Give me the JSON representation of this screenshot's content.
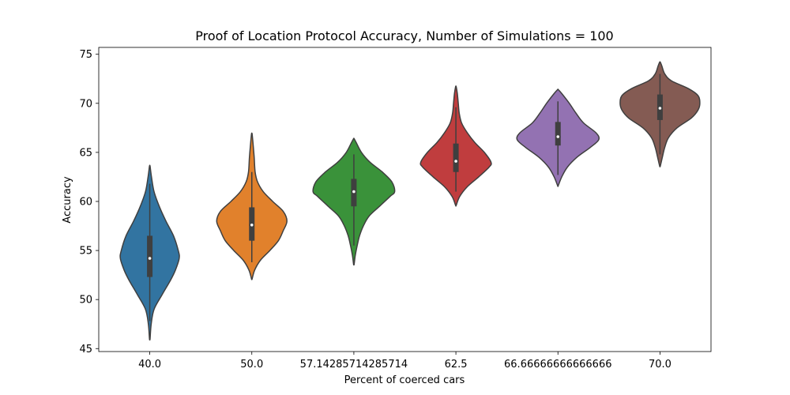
{
  "chart_data": {
    "type": "violin",
    "title": "Proof of Location Protocol Accuracy, Number of Simulations = 100",
    "xlabel": "Percent of coerced cars",
    "ylabel": "Accuracy",
    "ylim": [
      44.7,
      75.7
    ],
    "yticks": [
      45,
      50,
      55,
      60,
      65,
      70,
      75
    ],
    "ytick_labels": [
      "45",
      "50",
      "55",
      "60",
      "65",
      "70",
      "75"
    ],
    "grid": false,
    "categories": [
      "40.0",
      "50.0",
      "57.142857142857140",
      "62.5",
      "66.66666666666666",
      "70.0"
    ],
    "category_labels": [
      "40.0",
      "50.0",
      "57.14285714285714",
      "62.5",
      "66.66666666666666",
      "70.0"
    ],
    "series": [
      {
        "category": "40.0",
        "color": "#3274a1",
        "min": 46.0,
        "max": 63.6,
        "q1": 52.3,
        "median": 54.2,
        "q3": 56.5,
        "whisker_low": 47.8,
        "whisker_high": 61.8,
        "density": [
          [
            46.0,
            0.3
          ],
          [
            47.5,
            1.5
          ],
          [
            49.0,
            4.5
          ],
          [
            50.5,
            13
          ],
          [
            52.0,
            22
          ],
          [
            53.0,
            27
          ],
          [
            54.2,
            31
          ],
          [
            55.0,
            30
          ],
          [
            56.5,
            25
          ],
          [
            58.0,
            17
          ],
          [
            59.5,
            10
          ],
          [
            61.0,
            4.5
          ],
          [
            62.5,
            1.8
          ],
          [
            63.6,
            0.3
          ]
        ]
      },
      {
        "category": "50.0",
        "color": "#e1812c",
        "min": 52.1,
        "max": 66.9,
        "q1": 56.0,
        "median": 57.6,
        "q3": 59.4,
        "whisker_low": 53.8,
        "whisker_high": 63.0,
        "density": [
          [
            52.1,
            0.3
          ],
          [
            53.0,
            3
          ],
          [
            54.0,
            9
          ],
          [
            55.0,
            19
          ],
          [
            56.0,
            28
          ],
          [
            57.0,
            33
          ],
          [
            58.0,
            37
          ],
          [
            59.0,
            33
          ],
          [
            60.0,
            22
          ],
          [
            61.0,
            12
          ],
          [
            62.0,
            6
          ],
          [
            63.0,
            3.5
          ],
          [
            64.5,
            2.5
          ],
          [
            66.0,
            1.2
          ],
          [
            66.9,
            0.3
          ]
        ]
      },
      {
        "category": "57.142857142857140",
        "color": "#3a923a",
        "min": 53.6,
        "max": 66.4,
        "q1": 59.5,
        "median": 61.0,
        "q3": 62.3,
        "whisker_low": 55.5,
        "whisker_high": 64.8,
        "density": [
          [
            53.6,
            0.3
          ],
          [
            54.5,
            1.5
          ],
          [
            55.5,
            3.5
          ],
          [
            56.5,
            6
          ],
          [
            57.5,
            10
          ],
          [
            58.5,
            16
          ],
          [
            59.5,
            27
          ],
          [
            60.5,
            38
          ],
          [
            61.0,
            43
          ],
          [
            62.0,
            40
          ],
          [
            63.0,
            30
          ],
          [
            64.0,
            17
          ],
          [
            65.0,
            8
          ],
          [
            66.0,
            2.5
          ],
          [
            66.4,
            0.3
          ]
        ]
      },
      {
        "category": "62.5",
        "color": "#c03d3e",
        "min": 59.6,
        "max": 71.7,
        "q1": 63.0,
        "median": 64.1,
        "q3": 65.9,
        "whisker_low": 61.0,
        "whisker_high": 69.6,
        "density": [
          [
            59.6,
            0.3
          ],
          [
            60.5,
            4
          ],
          [
            61.5,
            12
          ],
          [
            62.5,
            24
          ],
          [
            63.5,
            35
          ],
          [
            64.0,
            37
          ],
          [
            65.0,
            30
          ],
          [
            66.0,
            20
          ],
          [
            67.0,
            12
          ],
          [
            68.0,
            6
          ],
          [
            69.0,
            3.5
          ],
          [
            70.0,
            2.5
          ],
          [
            71.0,
            1.5
          ],
          [
            71.7,
            0.3
          ]
        ]
      },
      {
        "category": "66.66666666666666",
        "color": "#9372b2",
        "min": 61.6,
        "max": 71.4,
        "q1": 65.7,
        "median": 66.6,
        "q3": 68.1,
        "whisker_low": 62.7,
        "whisker_high": 70.2,
        "density": [
          [
            61.6,
            0.3
          ],
          [
            62.5,
            4
          ],
          [
            63.5,
            10
          ],
          [
            64.5,
            20
          ],
          [
            65.5,
            34
          ],
          [
            66.3,
            43
          ],
          [
            67.0,
            40
          ],
          [
            68.0,
            27
          ],
          [
            69.0,
            19
          ],
          [
            70.0,
            12
          ],
          [
            71.0,
            4
          ],
          [
            71.4,
            0.3
          ]
        ]
      },
      {
        "category": "70.0",
        "color": "#845b53",
        "min": 63.6,
        "max": 74.2,
        "q1": 68.3,
        "median": 69.5,
        "q3": 70.9,
        "whisker_low": 64.8,
        "whisker_high": 73.0,
        "density": [
          [
            63.6,
            0.3
          ],
          [
            64.5,
            2.5
          ],
          [
            65.5,
            5
          ],
          [
            66.5,
            9
          ],
          [
            67.5,
            18
          ],
          [
            68.5,
            33
          ],
          [
            69.3,
            40
          ],
          [
            70.0,
            42
          ],
          [
            70.8,
            40
          ],
          [
            71.5,
            30
          ],
          [
            72.3,
            12
          ],
          [
            73.0,
            5
          ],
          [
            73.8,
            2
          ],
          [
            74.2,
            0.3
          ]
        ]
      }
    ]
  }
}
